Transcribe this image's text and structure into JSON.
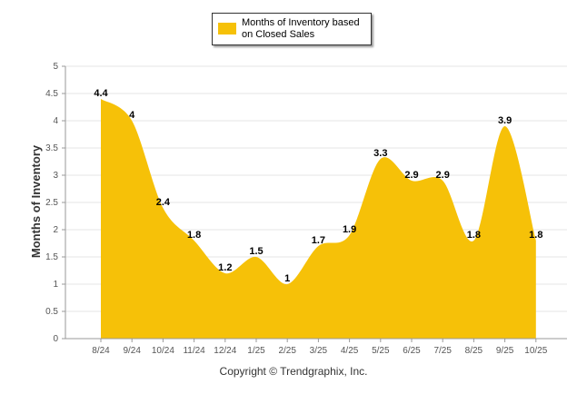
{
  "chart_data": {
    "type": "area",
    "categories": [
      "8/24",
      "9/24",
      "10/24",
      "11/24",
      "12/24",
      "1/25",
      "2/25",
      "3/25",
      "4/25",
      "5/25",
      "6/25",
      "7/25",
      "8/25",
      "9/25",
      "10/25"
    ],
    "series": [
      {
        "name": "Months of Inventory based on Closed Sales",
        "values": [
          4.4,
          4,
          2.4,
          1.8,
          1.2,
          1.5,
          1,
          1.7,
          1.9,
          3.3,
          2.9,
          2.9,
          1.8,
          3.9,
          1.8
        ],
        "labels": [
          "4.4",
          "4",
          "2.4",
          "1.8",
          "1.2",
          "1.5",
          "1",
          "1.7",
          "1.9",
          "3.3",
          "2.9",
          "2.9",
          "1.8",
          "3.9",
          "1.8"
        ],
        "color": "#F6C108"
      }
    ],
    "yticks": [
      "0",
      "0.5",
      "1",
      "1.5",
      "2",
      "2.5",
      "3",
      "3.5",
      "4",
      "4.5",
      "5"
    ],
    "ylim": [
      0,
      5
    ],
    "ylabel": "Months of Inventory",
    "xlabel": "",
    "grid": true,
    "legend": "top-center"
  },
  "footer": {
    "copyright": "Copyright © Trendgraphix, Inc."
  }
}
